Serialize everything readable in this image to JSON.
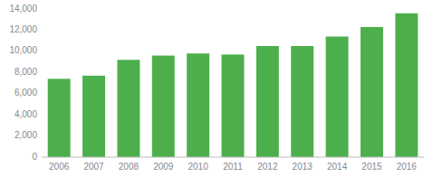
{
  "chart_data": {
    "type": "bar",
    "categories": [
      "2006",
      "2007",
      "2008",
      "2009",
      "2010",
      "2011",
      "2012",
      "2013",
      "2014",
      "2015",
      "2016"
    ],
    "values": [
      7400,
      7700,
      9200,
      9600,
      9800,
      9700,
      10500,
      10500,
      11400,
      12300,
      13600
    ],
    "color": "#4caf4c",
    "ylim": [
      0,
      14000
    ],
    "yticks": [
      0,
      {
        "value": 2000,
        "label": "2,000"
      },
      {
        "value": 4000,
        "label": "4,000"
      },
      {
        "value": 6000,
        "label": "6,000"
      },
      {
        "value": 8000,
        "label": "8,000"
      },
      {
        "value": 10000,
        "label": "10,000"
      },
      {
        "value": 12000,
        "label": "12,000"
      },
      {
        "value": 14000,
        "label": "14,000"
      }
    ],
    "grid": false
  }
}
